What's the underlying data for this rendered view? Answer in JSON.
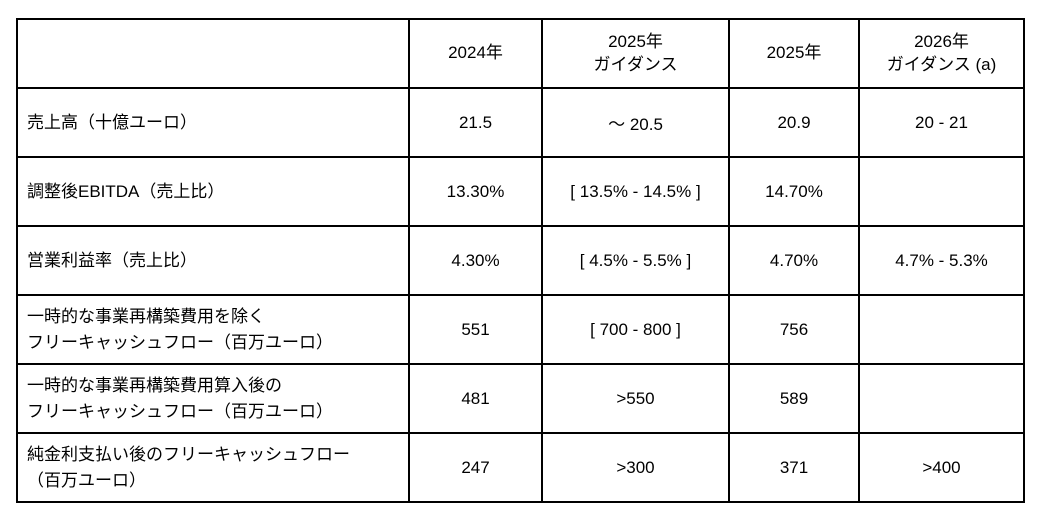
{
  "colors": {
    "background": "#ffffff",
    "border": "#000000",
    "text": "#000000"
  },
  "chart_data": {
    "type": "table",
    "columns": [
      "",
      "2024年",
      "2025年\nガイダンス",
      "2025年",
      "2026年\nガイダンス (a)"
    ],
    "rows": [
      {
        "label": "売上高（十億ユーロ）",
        "values": [
          "21.5",
          "～ 20.5",
          "20.9",
          "20 - 21"
        ]
      },
      {
        "label": "調整後EBITDA（売上比）",
        "values": [
          "13.30%",
          "[ 13.5% - 14.5% ]",
          "14.70%",
          ""
        ]
      },
      {
        "label": "営業利益率（売上比）",
        "values": [
          "4.30%",
          "[ 4.5% - 5.5% ]",
          "4.70%",
          "4.7% - 5.3%"
        ]
      },
      {
        "label": "一時的な事業再構築費用を除く\nフリーキャッシュフロー（百万ユーロ）",
        "values": [
          "551",
          "[ 700 - 800 ]",
          "756",
          ""
        ]
      },
      {
        "label": "一時的な事業再構築費用算入後の\nフリーキャッシュフロー（百万ユーロ）",
        "values": [
          "481",
          ">550",
          "589",
          ""
        ]
      },
      {
        "label": "純金利支払い後のフリーキャッシュフロー\n（百万ユーロ）",
        "values": [
          "247",
          ">300",
          "371",
          ">400"
        ]
      }
    ]
  }
}
